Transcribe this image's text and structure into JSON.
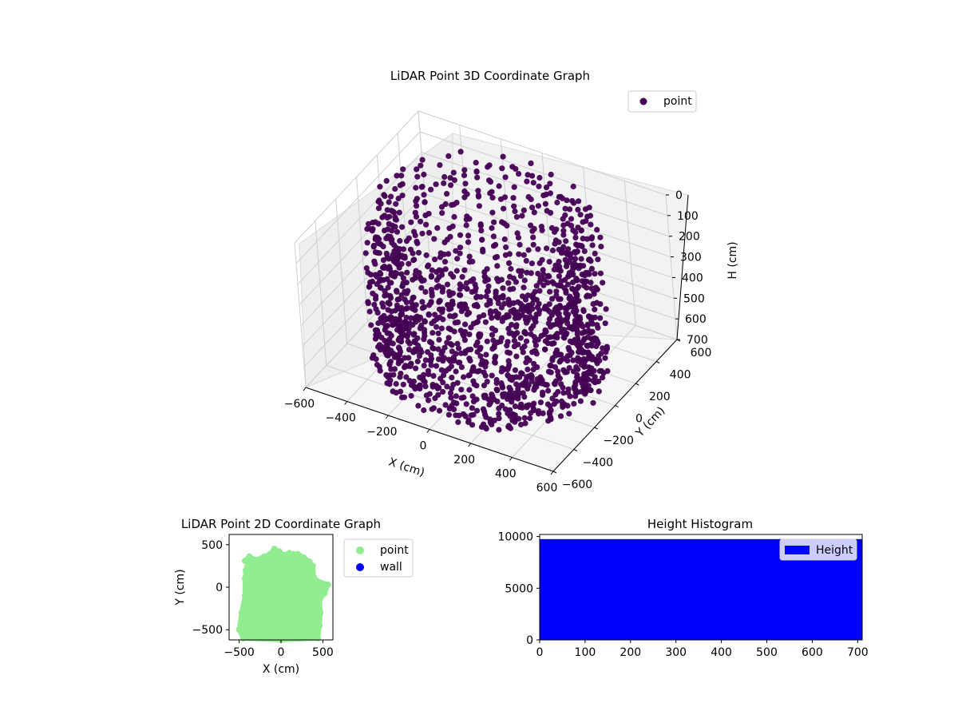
{
  "chart_data": [
    {
      "type": "scatter",
      "projection": "3d",
      "title": "LiDAR Point 3D Coordinate Graph",
      "xlabel": "X (cm)",
      "ylabel": "Y (cm)",
      "zlabel": "H (cm)",
      "xlim": [
        -600,
        600
      ],
      "ylim": [
        -600,
        600
      ],
      "zlim": [
        700,
        0
      ],
      "xticks": [
        "−600",
        "−400",
        "−200",
        "0",
        "200",
        "400",
        "600"
      ],
      "yticks": [
        "−600",
        "−400",
        "−200",
        "0",
        "200",
        "400",
        "600"
      ],
      "zticks": [
        "0",
        "100",
        "200",
        "300",
        "400",
        "500",
        "600",
        "700"
      ],
      "zaxis_inverted": true,
      "grid": true,
      "legend_position": "top-right",
      "series": [
        {
          "name": "point",
          "color": "#440154",
          "description_shape": "dense cylinder of points centered near (0,0) with radius about 500 cm, heights 0 to 700 cm"
        }
      ]
    },
    {
      "type": "scatter",
      "title": "LiDAR Point 2D Coordinate Graph",
      "xlabel": "X (cm)",
      "ylabel": "Y (cm)",
      "xticks": [
        "−500",
        "0",
        "500"
      ],
      "yticks": [
        "−500",
        "0",
        "500"
      ],
      "xlim": [
        -620,
        620
      ],
      "ylim": [
        -620,
        620
      ],
      "legend_position": "outside-right",
      "series": [
        {
          "name": "point",
          "color": "#90ee90"
        },
        {
          "name": "wall",
          "color": "#0000ff"
        }
      ],
      "point_region_outline": [
        [
          -450,
          -600
        ],
        [
          -500,
          -500
        ],
        [
          -470,
          -300
        ],
        [
          -430,
          -100
        ],
        [
          -430,
          100
        ],
        [
          -420,
          200
        ],
        [
          -400,
          280
        ],
        [
          -430,
          310
        ],
        [
          -380,
          360
        ],
        [
          -300,
          320
        ],
        [
          -200,
          360
        ],
        [
          -130,
          390
        ],
        [
          -80,
          450
        ],
        [
          -20,
          420
        ],
        [
          20,
          380
        ],
        [
          100,
          400
        ],
        [
          200,
          390
        ],
        [
          270,
          350
        ],
        [
          340,
          300
        ],
        [
          380,
          250
        ],
        [
          390,
          120
        ],
        [
          420,
          80
        ],
        [
          560,
          30
        ],
        [
          520,
          -70
        ],
        [
          460,
          -150
        ],
        [
          470,
          -300
        ],
        [
          460,
          -450
        ],
        [
          440,
          -600
        ],
        [
          0,
          -620
        ]
      ]
    },
    {
      "type": "bar",
      "subtype": "histogram",
      "title": "Height Histogram",
      "xticks": [
        "0",
        "100",
        "200",
        "300",
        "400",
        "500",
        "600",
        "700"
      ],
      "yticks": [
        "0",
        "5000",
        "10000"
      ],
      "xlim": [
        0,
        710
      ],
      "ylim": [
        0,
        10200
      ],
      "legend_position": "top-right",
      "series": [
        {
          "name": "Height",
          "color": "#0000ff",
          "bin_range": [
            0,
            710
          ],
          "count": 9750
        }
      ]
    }
  ]
}
